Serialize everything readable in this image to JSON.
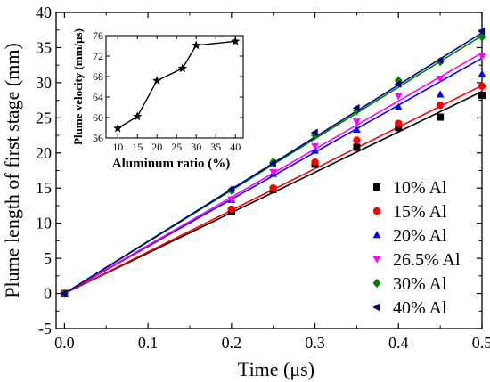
{
  "chart_data": [
    {
      "type": "scatter",
      "xlabel": "Time (μs)",
      "ylabel": "Plume length of first stage (mm)",
      "xlim": [
        -0.01,
        0.5
      ],
      "ylim": [
        -5,
        40
      ],
      "xticks": [
        0.0,
        0.1,
        0.2,
        0.3,
        0.4,
        0.5
      ],
      "xtick_labels": [
        "0.0",
        "0.1",
        "0.2",
        "0.3",
        "0.4",
        "0.5"
      ],
      "yticks": [
        -5,
        0,
        5,
        10,
        15,
        20,
        25,
        30,
        35,
        40
      ],
      "ytick_labels": [
        "-5",
        "0",
        "5",
        "10",
        "15",
        "20",
        "25",
        "30",
        "35",
        "40"
      ],
      "legend_position": "bottom-right",
      "x": [
        0.0,
        0.2,
        0.25,
        0.3,
        0.35,
        0.4,
        0.45,
        0.5
      ],
      "series": [
        {
          "name": "10%  Al",
          "color": "#000000",
          "marker": "square",
          "values": [
            0,
            11.7,
            14.8,
            18.4,
            20.8,
            23.6,
            25.1,
            28.2
          ],
          "fit_slope": 57.5
        },
        {
          "name": "15%  Al",
          "color": "#ff0000",
          "marker": "circle",
          "values": [
            0,
            12.0,
            15.0,
            18.7,
            21.8,
            24.2,
            26.8,
            29.5
          ],
          "fit_slope": 59.2
        },
        {
          "name": "20%  Al",
          "color": "#0000ff",
          "marker": "triangle-up",
          "values": [
            0,
            13.3,
            17.0,
            20.3,
            23.3,
            26.5,
            28.3,
            31.2
          ],
          "fit_slope": 67.0
        },
        {
          "name": "26.5%  Al",
          "color": "#ff00ff",
          "marker": "triangle-down",
          "values": [
            0,
            13.4,
            17.3,
            21.0,
            24.5,
            28.1,
            30.6,
            33.8
          ],
          "fit_slope": 68.5
        },
        {
          "name": "30%  Al",
          "color": "#008000",
          "marker": "diamond",
          "values": [
            0,
            14.7,
            18.7,
            22.5,
            26.0,
            30.3,
            33.0,
            36.5
          ],
          "fit_slope": 73.4
        },
        {
          "name": "40%  Al",
          "color": "#000080",
          "marker": "triangle-left",
          "values": [
            0,
            14.8,
            18.5,
            22.9,
            26.4,
            29.8,
            33.2,
            37.3
          ],
          "fit_slope": 74.2
        }
      ]
    },
    {
      "type": "line",
      "xlabel": "Aluminum ratio (%)",
      "ylabel": "Plume velocity (mm/μs)",
      "xlim": [
        7,
        42
      ],
      "ylim": [
        56,
        76
      ],
      "xticks": [
        10,
        15,
        20,
        25,
        30,
        35,
        40
      ],
      "xtick_labels": [
        "10",
        "15",
        "20",
        "25",
        "30",
        "35",
        "40"
      ],
      "yticks": [
        56,
        60,
        64,
        68,
        72,
        76
      ],
      "ytick_labels": [
        "56",
        "60",
        "64",
        "68",
        "72",
        "76"
      ],
      "marker": "star",
      "color": "#000000",
      "x": [
        10,
        15,
        20,
        26.5,
        30,
        40
      ],
      "y": [
        57.9,
        60.2,
        67.2,
        69.6,
        74.1,
        74.9
      ]
    }
  ]
}
